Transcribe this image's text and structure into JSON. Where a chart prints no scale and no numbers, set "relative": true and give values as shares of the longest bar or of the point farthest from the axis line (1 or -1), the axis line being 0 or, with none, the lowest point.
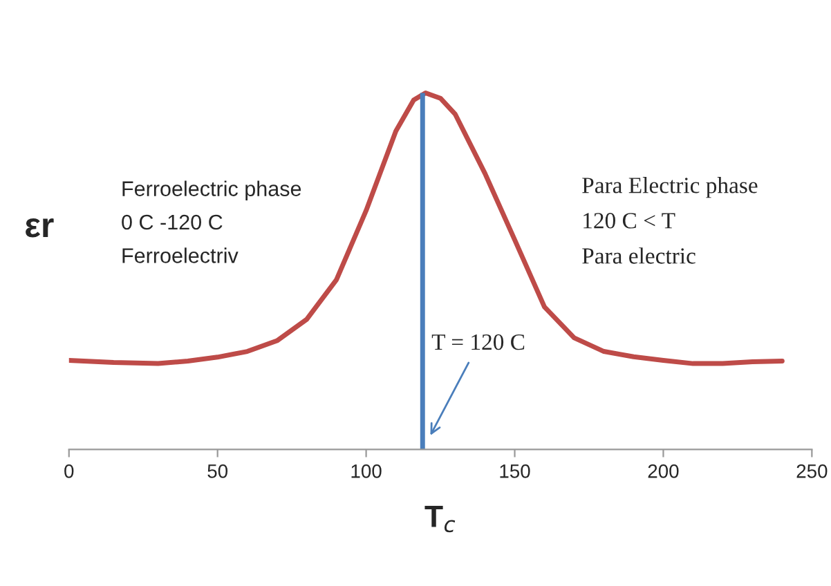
{
  "chart_data": {
    "type": "line",
    "relative": true,
    "xlabel": "T$_{c}$",
    "ylabel": "εr",
    "xlim": [
      0,
      250
    ],
    "xticks": [
      0,
      50,
      100,
      150,
      200,
      250
    ],
    "grid": false,
    "marker": "none",
    "line_style": "solid",
    "series": [
      {
        "color": "#be4b48",
        "x": [
          0,
          15,
          30,
          40,
          50,
          60,
          70,
          80,
          90,
          100,
          110,
          116,
          120,
          125,
          130,
          140,
          150,
          160,
          170,
          180,
          190,
          200,
          210,
          220,
          230,
          240
        ],
        "values": [
          0.25,
          0.244,
          0.241,
          0.248,
          0.259,
          0.275,
          0.305,
          0.365,
          0.476,
          0.67,
          0.893,
          0.98,
          1,
          0.985,
          0.94,
          0.774,
          0.588,
          0.4,
          0.313,
          0.275,
          0.26,
          0.25,
          0.241,
          0.241,
          0.246,
          0.248
        ]
      }
    ],
    "ref_lines": [
      {
        "axis": "x",
        "value": 119,
        "color": "#4a7ebb",
        "line_style": "solid"
      }
    ],
    "annotations": [
      "Ferroelectric phase\n0 C -120 C\nFerroelectriv",
      "Para Electric phase\n120 C < T\nPara electric",
      {
        "text": "T = 120 C",
        "x": 121,
        "y": 0.03
      }
    ]
  }
}
